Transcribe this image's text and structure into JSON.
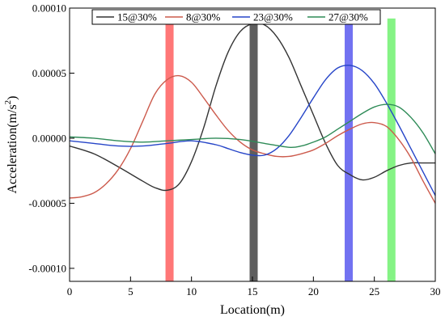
{
  "chart_data": {
    "type": "line",
    "title": "",
    "xlabel": "Location(m)",
    "ylabel_main": "Acceleration(m/s",
    "ylabel_sup": "2",
    "ylabel_close": ")",
    "xlim": [
      0,
      30
    ],
    "ylim": [
      -0.00011,
      0.0001
    ],
    "x_ticks": [
      0,
      5,
      10,
      15,
      20,
      25,
      30
    ],
    "x_tick_labels": [
      "0",
      "5",
      "10",
      "15",
      "20",
      "25",
      "30"
    ],
    "y_ticks": [
      0.0001,
      5e-05,
      0.0,
      -5e-05,
      -0.0001
    ],
    "y_tick_labels": [
      "0.00010",
      "0.00005",
      "0.00000",
      "-0.00005",
      "-0.00010"
    ],
    "grid": false,
    "legend_position": "top",
    "series": [
      {
        "name": "15@30%",
        "color": "#333333",
        "x": [
          0,
          2,
          4,
          6,
          7,
          8,
          9,
          10,
          11,
          12,
          13,
          14,
          15,
          16,
          17,
          18,
          19,
          20,
          21,
          22,
          23,
          24,
          25,
          26,
          27,
          28,
          29,
          30
        ],
        "y": [
          -6e-06,
          -1.2e-05,
          -2.2e-05,
          -3.3e-05,
          -3.8e-05,
          -4e-05,
          -3.5e-05,
          -1.8e-05,
          8e-06,
          4e-05,
          6.6e-05,
          8.2e-05,
          8.8e-05,
          8.7e-05,
          7.8e-05,
          6.2e-05,
          4e-05,
          1.8e-05,
          -4e-06,
          -2.1e-05,
          -2.8e-05,
          -3.2e-05,
          -3e-05,
          -2.5e-05,
          -2.1e-05,
          -1.9e-05,
          -1.9e-05,
          -1.9e-05
        ]
      },
      {
        "name": "8@30%",
        "color": "#cc5a4c",
        "x": [
          0,
          1,
          2,
          3,
          4,
          5,
          6,
          7,
          8,
          9,
          10,
          11,
          12,
          13,
          14,
          15,
          16,
          17,
          18,
          19,
          20,
          21,
          22,
          23,
          24,
          25,
          26,
          27,
          28,
          29,
          30
        ],
        "y": [
          -4.6e-05,
          -4.5e-05,
          -4.2e-05,
          -3.5e-05,
          -2.4e-05,
          -8e-06,
          1.3e-05,
          3.4e-05,
          4.5e-05,
          4.8e-05,
          4.3e-05,
          3.1e-05,
          1.8e-05,
          6e-06,
          -3e-06,
          -9e-06,
          -1.2e-05,
          -1.4e-05,
          -1.4e-05,
          -1.2e-05,
          -9e-06,
          -4e-06,
          2e-06,
          7e-06,
          1.1e-05,
          1.2e-05,
          9e-06,
          -1e-06,
          -1.5e-05,
          -3.3e-05,
          -5e-05
        ]
      },
      {
        "name": "23@30%",
        "color": "#2645c8",
        "x": [
          0,
          2,
          4,
          6,
          8,
          10,
          12,
          13,
          14,
          15,
          16,
          17,
          18,
          19,
          20,
          21,
          22,
          23,
          24,
          25,
          26,
          27,
          28,
          29,
          30
        ],
        "y": [
          -2e-06,
          -4e-06,
          -6e-06,
          -6e-06,
          -4e-06,
          -2e-06,
          -5e-06,
          -8e-06,
          -1.1e-05,
          -1.3e-05,
          -1.3e-05,
          -8e-06,
          2e-06,
          1.6e-05,
          3.1e-05,
          4.5e-05,
          5.4e-05,
          5.6e-05,
          5.2e-05,
          4.2e-05,
          2.7e-05,
          1e-05,
          -8e-06,
          -2.6e-05,
          -4.4e-05
        ]
      },
      {
        "name": "27@30%",
        "color": "#2e8b57",
        "x": [
          0,
          2,
          4,
          6,
          8,
          10,
          12,
          14,
          16,
          18,
          19,
          20,
          21,
          22,
          23,
          24,
          25,
          26,
          27,
          28,
          29,
          30
        ],
        "y": [
          1e-06,
          0.0,
          -2e-06,
          -3e-06,
          -2e-06,
          -1e-06,
          0.0,
          -1e-06,
          -4e-06,
          -7e-06,
          -6e-06,
          -3e-06,
          1e-06,
          7e-06,
          1.3e-05,
          1.9e-05,
          2.4e-05,
          2.6e-05,
          2.4e-05,
          1.6e-05,
          4e-06,
          -1.2e-05
        ]
      }
    ],
    "highlight_bars": [
      {
        "location": 8.2,
        "color": "#ff7070"
      },
      {
        "location": 15.1,
        "color": "#555555"
      },
      {
        "location": 22.9,
        "color": "#6a6af0"
      },
      {
        "location": 26.4,
        "color": "#7ef27e"
      }
    ],
    "highlight_top_value": 9.2e-05
  }
}
